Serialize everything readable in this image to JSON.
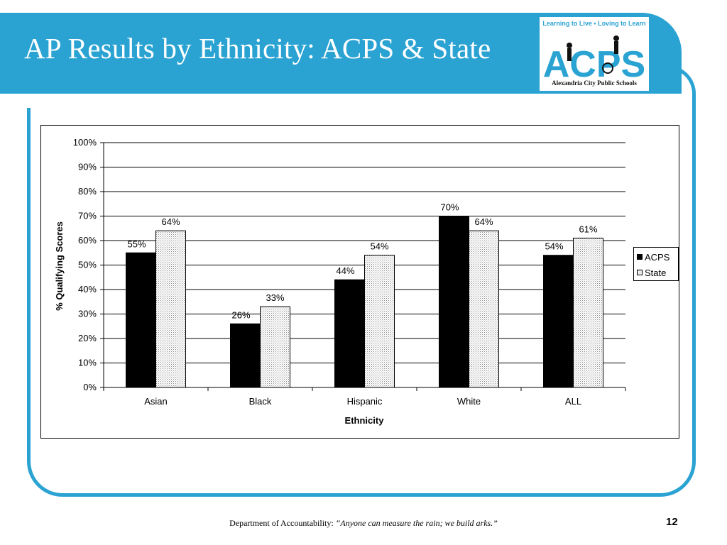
{
  "slide": {
    "title": "AP Results by Ethnicity: ACPS & State",
    "logo": {
      "tagline": "Learning to Live • Loving to Learn",
      "letters": "ACPS",
      "footer": "Alexandria City Public Schools"
    },
    "footer": {
      "department": "Department of Accountability: ",
      "quote": "“Anyone can measure the rain; we build arks.”"
    },
    "page_number": "12"
  },
  "colors": {
    "accent": "#2aa3d3",
    "acps_fill": "#000000",
    "state_fill": "#ffffff",
    "state_dot": "#888888"
  },
  "chart_data": {
    "type": "bar",
    "categories": [
      "Asian",
      "Black",
      "Hispanic",
      "White",
      "ALL"
    ],
    "series": [
      {
        "name": "ACPS",
        "values": [
          55,
          26,
          44,
          70,
          54
        ],
        "labels": [
          "55%",
          "26%",
          "44%",
          "70%",
          "54%"
        ]
      },
      {
        "name": "State",
        "values": [
          64,
          33,
          54,
          64,
          61
        ],
        "labels": [
          "64%",
          "33%",
          "54%",
          "64%",
          "61%"
        ]
      }
    ],
    "xlabel": "Ethnicity",
    "ylabel": "% Qualifying Scores",
    "ylim": [
      0,
      100
    ],
    "yticks": [
      "0%",
      "10%",
      "20%",
      "30%",
      "40%",
      "50%",
      "60%",
      "70%",
      "80%",
      "90%",
      "100%"
    ],
    "grid": true,
    "legend_position": "right"
  }
}
